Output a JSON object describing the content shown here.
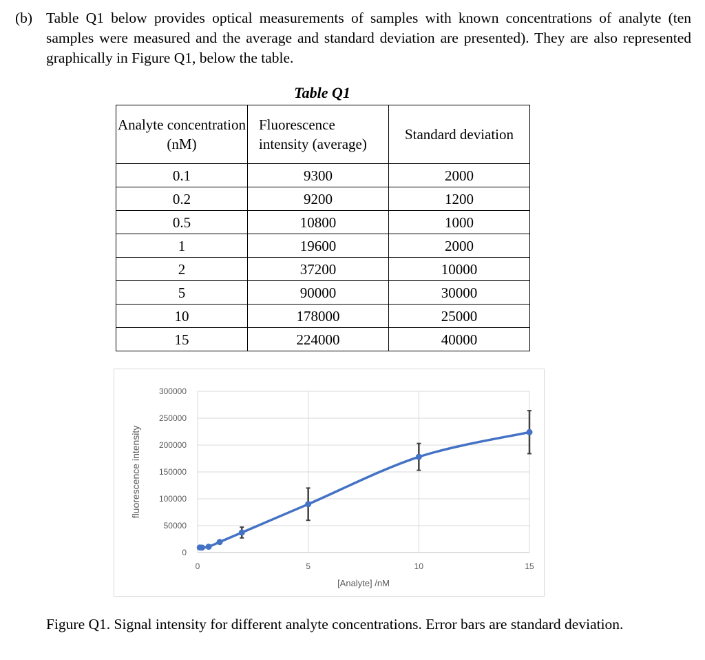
{
  "intro": {
    "label": "(b)",
    "text": "Table Q1 below provides optical measurements of samples with known concentrations of analyte (ten samples were measured and the average and standard deviation are presented). They are also represented graphically in Figure Q1, below the table."
  },
  "table": {
    "title": "Table Q1",
    "headers": [
      "Analyte concentration (nM)",
      "Fluorescence intensity (average)",
      "Standard deviation"
    ],
    "rows": [
      [
        "0.1",
        "9300",
        "2000"
      ],
      [
        "0.2",
        "9200",
        "1200"
      ],
      [
        "0.5",
        "10800",
        "1000"
      ],
      [
        "1",
        "19600",
        "2000"
      ],
      [
        "2",
        "37200",
        "10000"
      ],
      [
        "5",
        "90000",
        "30000"
      ],
      [
        "10",
        "178000",
        "25000"
      ],
      [
        "15",
        "224000",
        "40000"
      ]
    ]
  },
  "chart_data": {
    "type": "scatter",
    "title": "",
    "xlabel": "[Analyte] /nM",
    "ylabel": "fluorescence intensity",
    "xlim": [
      0,
      15
    ],
    "ylim": [
      0,
      300000
    ],
    "xticks": [
      "0",
      "5",
      "10",
      "15"
    ],
    "yticks": [
      "0",
      "50000",
      "100000",
      "150000",
      "200000",
      "250000",
      "300000"
    ],
    "grid": true,
    "series": [
      {
        "name": "Fluorescence intensity",
        "color": "#4472c4",
        "x": [
          0.1,
          0.2,
          0.5,
          1,
          2,
          5,
          10,
          15
        ],
        "y": [
          9300,
          9200,
          10800,
          19600,
          37200,
          90000,
          178000,
          224000
        ],
        "error": [
          2000,
          1200,
          1000,
          2000,
          10000,
          30000,
          25000,
          40000
        ],
        "smooth_line": true
      }
    ]
  },
  "caption": "Figure Q1. Signal intensity for different analyte concentrations. Error bars are standard deviation."
}
